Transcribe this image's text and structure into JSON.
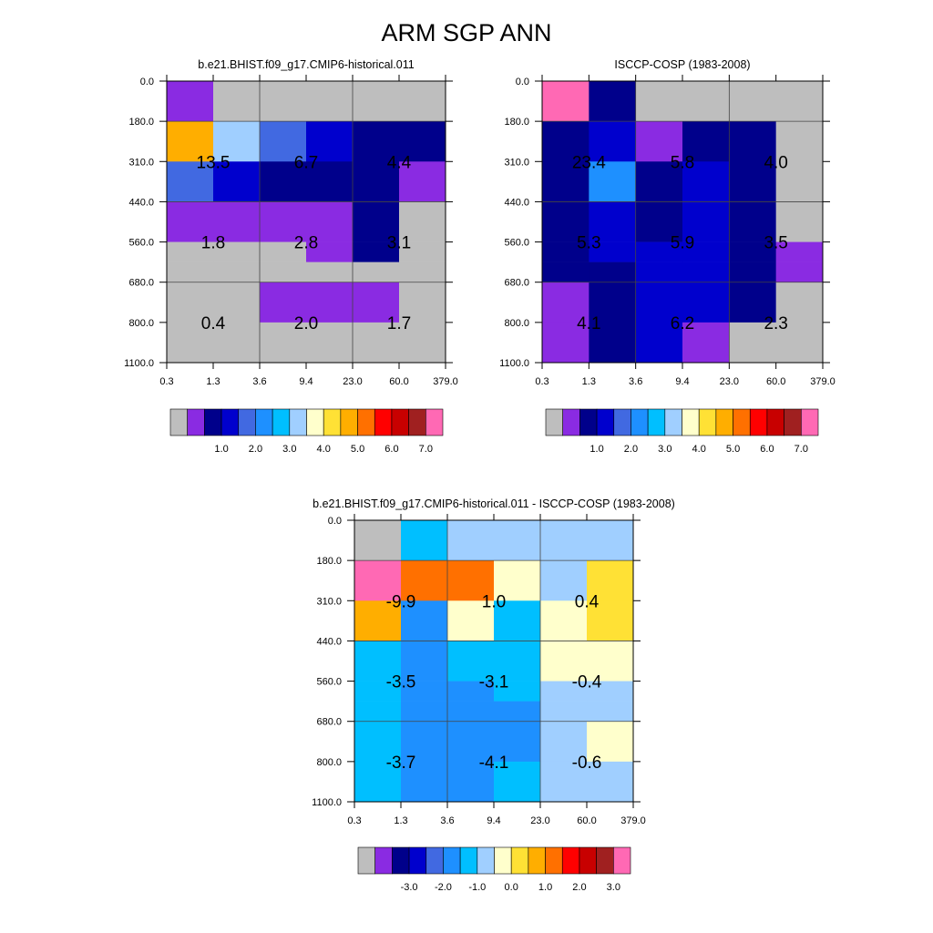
{
  "figure_title": "ARM SGP ANN",
  "colors": {
    "abs_palette": [
      "#bebebe",
      "#8a2be2",
      "#00008b",
      "#0000cd",
      "#4169e1",
      "#1e90ff",
      "#00bfff",
      "#a0cfff",
      "#ffffcc",
      "#ffe135",
      "#ffae00",
      "#ff7000",
      "#ff0000",
      "#c80000",
      "#a02020",
      "#ff69b4"
    ],
    "diff_palette": [
      "#bebebe",
      "#8a2be2",
      "#00008b",
      "#0000cd",
      "#4169e1",
      "#1e90ff",
      "#00bfff",
      "#a0cfff",
      "#ffffcc",
      "#ffe135",
      "#ffae00",
      "#ff7000",
      "#ff0000",
      "#c80000",
      "#a02020",
      "#ff69b4"
    ]
  },
  "chart_data": [
    {
      "type": "heatmap",
      "title": "b.e21.BHIST.f09_g17.CMIP6-historical.011",
      "x_ticks": [
        "0.3",
        "1.3",
        "3.6",
        "9.4",
        "23.0",
        "60.0",
        "379.0"
      ],
      "y_ticks": [
        "0.0",
        "180.0",
        "310.0",
        "440.0",
        "560.0",
        "680.0",
        "800.0",
        "1100.0"
      ],
      "colorbar_labels": [
        "1.0",
        "2.0",
        "3.0",
        "4.0",
        "5.0",
        "6.0",
        "7.0"
      ],
      "cell_color_index": [
        [
          1,
          0,
          0,
          0,
          0,
          0
        ],
        [
          10,
          7,
          4,
          3,
          2,
          2
        ],
        [
          4,
          3,
          2,
          2,
          2,
          1
        ],
        [
          1,
          1,
          1,
          1,
          2,
          0
        ],
        [
          0,
          0,
          0,
          1,
          2,
          0
        ],
        [
          0,
          0,
          0,
          0,
          0,
          0
        ],
        [
          0,
          0,
          1,
          1,
          1,
          0
        ],
        [
          0,
          0,
          0,
          0,
          0,
          0
        ]
      ],
      "annotations": [
        {
          "x_pair": 0,
          "y_pair": 0,
          "text": "13.5"
        },
        {
          "x_pair": 1,
          "y_pair": 0,
          "text": "6.7"
        },
        {
          "x_pair": 2,
          "y_pair": 0,
          "text": "4.4"
        },
        {
          "x_pair": 0,
          "y_pair": 1,
          "text": "1.8"
        },
        {
          "x_pair": 1,
          "y_pair": 1,
          "text": "2.8"
        },
        {
          "x_pair": 2,
          "y_pair": 1,
          "text": "3.1"
        },
        {
          "x_pair": 0,
          "y_pair": 2,
          "text": "0.4"
        },
        {
          "x_pair": 1,
          "y_pair": 2,
          "text": "2.0"
        },
        {
          "x_pair": 2,
          "y_pair": 2,
          "text": "1.7"
        }
      ]
    },
    {
      "type": "heatmap",
      "title": "ISCCP-COSP (1983-2008)",
      "x_ticks": [
        "0.3",
        "1.3",
        "3.6",
        "9.4",
        "23.0",
        "60.0",
        "379.0"
      ],
      "y_ticks": [
        "0.0",
        "180.0",
        "310.0",
        "440.0",
        "560.0",
        "680.0",
        "800.0",
        "1100.0"
      ],
      "colorbar_labels": [
        "1.0",
        "2.0",
        "3.0",
        "4.0",
        "5.0",
        "6.0",
        "7.0"
      ],
      "cell_color_index": [
        [
          15,
          2,
          0,
          0,
          0,
          0
        ],
        [
          2,
          3,
          1,
          2,
          2,
          0
        ],
        [
          2,
          5,
          2,
          3,
          2,
          0
        ],
        [
          2,
          3,
          2,
          3,
          2,
          0
        ],
        [
          2,
          3,
          3,
          3,
          2,
          1
        ],
        [
          2,
          2,
          3,
          3,
          2,
          1
        ],
        [
          1,
          2,
          3,
          3,
          2,
          0
        ],
        [
          1,
          2,
          3,
          1,
          0,
          0
        ]
      ],
      "annotations": [
        {
          "x_pair": 0,
          "y_pair": 0,
          "text": "23.4"
        },
        {
          "x_pair": 1,
          "y_pair": 0,
          "text": "5.8"
        },
        {
          "x_pair": 2,
          "y_pair": 0,
          "text": "4.0"
        },
        {
          "x_pair": 0,
          "y_pair": 1,
          "text": "5.3"
        },
        {
          "x_pair": 1,
          "y_pair": 1,
          "text": "5.9"
        },
        {
          "x_pair": 2,
          "y_pair": 1,
          "text": "3.5"
        },
        {
          "x_pair": 0,
          "y_pair": 2,
          "text": "4.1"
        },
        {
          "x_pair": 1,
          "y_pair": 2,
          "text": "6.2"
        },
        {
          "x_pair": 2,
          "y_pair": 2,
          "text": "2.3"
        }
      ]
    },
    {
      "type": "heatmap",
      "title": "b.e21.BHIST.f09_g17.CMIP6-historical.011 - ISCCP-COSP (1983-2008)",
      "x_ticks": [
        "0.3",
        "1.3",
        "3.6",
        "9.4",
        "23.0",
        "60.0",
        "379.0"
      ],
      "y_ticks": [
        "0.0",
        "180.0",
        "310.0",
        "440.0",
        "560.0",
        "680.0",
        "800.0",
        "1100.0"
      ],
      "colorbar_labels": [
        "-3.0",
        "-2.0",
        "-1.0",
        "0.0",
        "1.0",
        "2.0",
        "3.0"
      ],
      "cell_color_index": [
        [
          0,
          6,
          7,
          7,
          7,
          7
        ],
        [
          15,
          11,
          11,
          8,
          7,
          9
        ],
        [
          10,
          5,
          8,
          6,
          8,
          9
        ],
        [
          6,
          5,
          6,
          6,
          8,
          8
        ],
        [
          6,
          5,
          5,
          6,
          7,
          7
        ],
        [
          6,
          5,
          5,
          5,
          7,
          7
        ],
        [
          6,
          5,
          5,
          5,
          7,
          8
        ],
        [
          6,
          5,
          5,
          6,
          7,
          7
        ]
      ],
      "annotations": [
        {
          "x_pair": 0,
          "y_pair": 0,
          "text": "-9.9"
        },
        {
          "x_pair": 1,
          "y_pair": 0,
          "text": "1.0"
        },
        {
          "x_pair": 2,
          "y_pair": 0,
          "text": "0.4"
        },
        {
          "x_pair": 0,
          "y_pair": 1,
          "text": "-3.5"
        },
        {
          "x_pair": 1,
          "y_pair": 1,
          "text": "-3.1"
        },
        {
          "x_pair": 2,
          "y_pair": 1,
          "text": "-0.4"
        },
        {
          "x_pair": 0,
          "y_pair": 2,
          "text": "-3.7"
        },
        {
          "x_pair": 1,
          "y_pair": 2,
          "text": "-4.1"
        },
        {
          "x_pair": 2,
          "y_pair": 2,
          "text": "-0.6"
        }
      ]
    }
  ]
}
